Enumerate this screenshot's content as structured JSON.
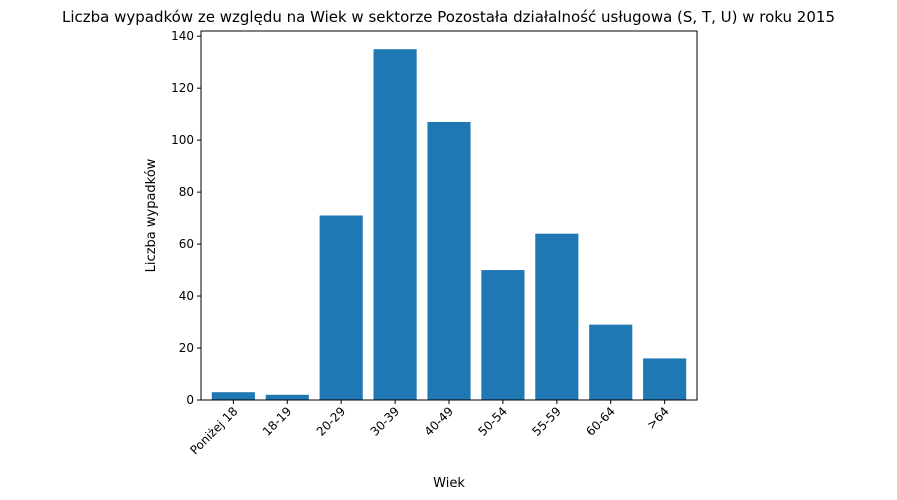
{
  "chart_data": {
    "type": "bar",
    "title": "Liczba wypadków ze względu na Wiek w sektorze Pozostała działalność usługowa  (S, T, U)   w roku 2015",
    "xlabel": "Wiek",
    "ylabel": "Liczba wypadków",
    "categories": [
      "Poniżej 18",
      "18-19",
      "20-29",
      "30-39",
      "40-49",
      "50-54",
      "55-59",
      "60-64",
      ">64"
    ],
    "values": [
      3,
      2,
      71,
      135,
      107,
      50,
      64,
      29,
      16
    ],
    "ylim": [
      0,
      142
    ],
    "yticks": [
      0,
      20,
      40,
      60,
      80,
      100,
      120,
      140
    ],
    "bar_color": "#1f77b4",
    "grid": false,
    "legend": "none"
  }
}
